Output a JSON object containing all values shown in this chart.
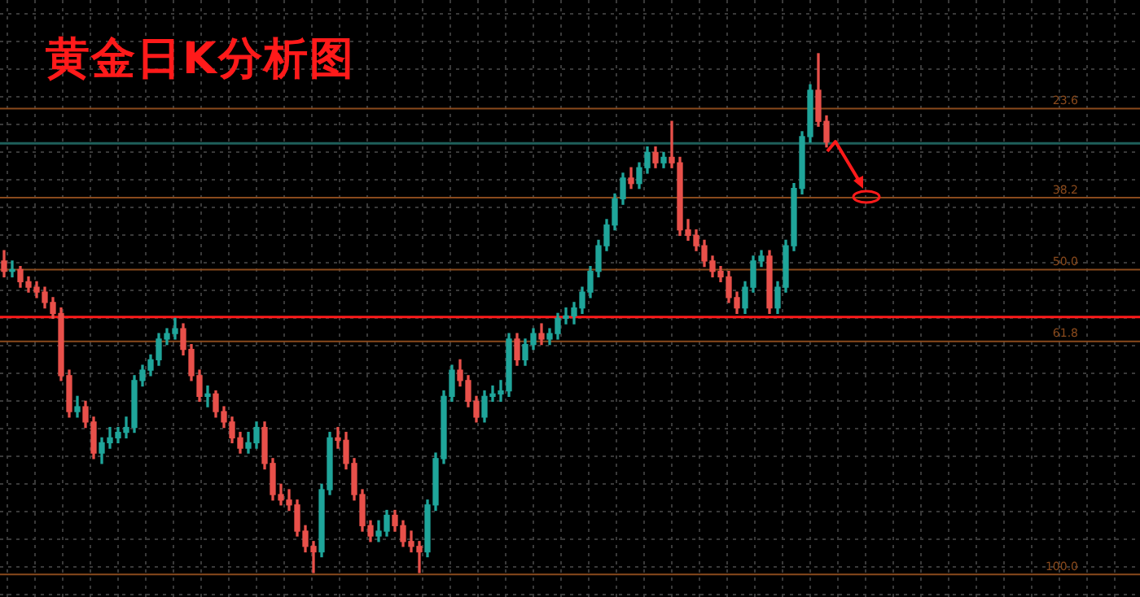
{
  "chart_data": {
    "type": "candlestick",
    "title": "黄金日K分析图",
    "grid": true,
    "tick_labels": false,
    "ylim": [
      103.7,
      5.8
    ],
    "categories": [
      null,
      null,
      null,
      null,
      null,
      null,
      null,
      null,
      null,
      null,
      null,
      null,
      null,
      null,
      null,
      null,
      null,
      null,
      null,
      null,
      null,
      null,
      null,
      null,
      null,
      null,
      null,
      null,
      null,
      null,
      null,
      null,
      null,
      null,
      null,
      null,
      null,
      null,
      null,
      null,
      null,
      null,
      null,
      null,
      null,
      null,
      null,
      null,
      null,
      null,
      null,
      null,
      null,
      null,
      null,
      null,
      null,
      null,
      null,
      null,
      null,
      null,
      null,
      null,
      null,
      null,
      null,
      null,
      null,
      null,
      null,
      null,
      null,
      null,
      null,
      null,
      null,
      null,
      null,
      null,
      null,
      null,
      null,
      null,
      null,
      null,
      null,
      null,
      null,
      null,
      null,
      null,
      null,
      null,
      null,
      null,
      null,
      null,
      null,
      null,
      null,
      null,
      null,
      null,
      null,
      null,
      null,
      null,
      null,
      null,
      null,
      null,
      null,
      null,
      null,
      null,
      null,
      null,
      null,
      null,
      null,
      null,
      null,
      null,
      null,
      null,
      null,
      null,
      null,
      null,
      null,
      null,
      null,
      null,
      null,
      null,
      null,
      null,
      null,
      null
    ],
    "ohlc": [
      [
        48.6,
        51.2,
        46.9,
        50.3
      ],
      [
        50.3,
        51.2,
        48.6,
        50.0
      ],
      [
        50.0,
        52.9,
        49.5,
        52.0
      ],
      [
        52.0,
        53.7,
        51.2,
        52.9
      ],
      [
        52.9,
        54.6,
        52.0,
        53.7
      ],
      [
        53.7,
        56.3,
        52.9,
        55.4
      ],
      [
        55.4,
        58.0,
        54.6,
        57.2
      ],
      [
        57.2,
        68.2,
        56.3,
        67.4
      ],
      [
        67.4,
        74.2,
        66.5,
        73.3
      ],
      [
        73.3,
        74.2,
        70.8,
        72.5
      ],
      [
        72.5,
        75.9,
        71.6,
        75.0
      ],
      [
        75.0,
        81.0,
        74.2,
        80.1
      ],
      [
        80.1,
        81.8,
        77.6,
        78.4
      ],
      [
        78.4,
        79.3,
        75.9,
        77.6
      ],
      [
        77.6,
        78.4,
        75.9,
        76.7
      ],
      [
        76.7,
        77.6,
        74.2,
        75.9
      ],
      [
        75.9,
        76.7,
        67.4,
        68.2
      ],
      [
        68.2,
        69.1,
        65.7,
        66.5
      ],
      [
        66.5,
        67.4,
        64.0,
        64.8
      ],
      [
        64.8,
        65.7,
        60.5,
        61.4
      ],
      [
        61.4,
        62.3,
        59.7,
        60.5
      ],
      [
        60.5,
        61.4,
        58.0,
        59.7
      ],
      [
        59.7,
        64.0,
        58.9,
        63.1
      ],
      [
        63.1,
        68.2,
        62.3,
        67.4
      ],
      [
        67.4,
        71.6,
        66.5,
        70.8
      ],
      [
        70.8,
        72.5,
        69.1,
        70.4
      ],
      [
        70.4,
        74.2,
        69.9,
        73.3
      ],
      [
        73.3,
        75.9,
        72.5,
        75.0
      ],
      [
        75.0,
        78.4,
        74.2,
        77.6
      ],
      [
        77.6,
        80.1,
        76.7,
        79.3
      ],
      [
        79.3,
        80.1,
        76.7,
        78.4
      ],
      [
        78.4,
        79.3,
        75.0,
        75.9
      ],
      [
        75.9,
        82.7,
        75.0,
        81.8
      ],
      [
        81.8,
        87.8,
        81.0,
        86.9
      ],
      [
        86.9,
        88.6,
        85.2,
        87.8
      ],
      [
        87.8,
        89.5,
        86.1,
        88.6
      ],
      [
        88.6,
        93.7,
        87.8,
        92.9
      ],
      [
        92.9,
        96.3,
        92.0,
        95.4
      ],
      [
        95.4,
        99.7,
        94.6,
        96.3
      ],
      [
        96.3,
        97.1,
        85.2,
        86.1
      ],
      [
        86.1,
        86.9,
        76.7,
        77.6
      ],
      [
        77.6,
        79.3,
        75.9,
        78.0
      ],
      [
        78.0,
        82.7,
        76.7,
        81.8
      ],
      [
        81.8,
        87.8,
        81.0,
        86.9
      ],
      [
        86.9,
        92.9,
        86.1,
        92.0
      ],
      [
        92.0,
        94.6,
        91.2,
        93.7
      ],
      [
        93.7,
        94.6,
        91.2,
        92.9
      ],
      [
        92.9,
        93.7,
        89.5,
        90.3
      ],
      [
        90.3,
        92.9,
        89.5,
        92.0
      ],
      [
        92.0,
        95.4,
        91.2,
        94.6
      ],
      [
        94.6,
        96.3,
        92.9,
        95.4
      ],
      [
        95.4,
        99.7,
        94.6,
        96.3
      ],
      [
        96.3,
        97.1,
        87.8,
        88.6
      ],
      [
        88.6,
        89.5,
        80.1,
        81.0
      ],
      [
        81.0,
        81.8,
        69.9,
        70.8
      ],
      [
        70.8,
        71.6,
        65.7,
        66.5
      ],
      [
        66.5,
        69.1,
        64.8,
        68.2
      ],
      [
        68.2,
        72.5,
        67.4,
        71.6
      ],
      [
        71.6,
        75.0,
        70.8,
        74.2
      ],
      [
        74.2,
        75.0,
        69.9,
        70.8
      ],
      [
        70.8,
        71.6,
        69.1,
        70.4
      ],
      [
        70.4,
        71.6,
        68.2,
        69.9
      ],
      [
        69.9,
        70.8,
        60.5,
        61.4
      ],
      [
        61.4,
        65.7,
        60.5,
        64.8
      ],
      [
        64.8,
        65.7,
        61.4,
        62.3
      ],
      [
        62.3,
        63.1,
        59.7,
        60.5
      ],
      [
        60.5,
        62.3,
        58.9,
        61.4
      ],
      [
        61.4,
        62.3,
        59.7,
        60.5
      ],
      [
        60.5,
        61.4,
        57.2,
        58.0
      ],
      [
        58.0,
        58.9,
        56.3,
        57.6
      ],
      [
        57.6,
        58.9,
        55.4,
        56.3
      ],
      [
        56.3,
        57.2,
        52.9,
        53.7
      ],
      [
        53.7,
        54.6,
        49.5,
        50.3
      ],
      [
        50.3,
        51.2,
        45.2,
        46.1
      ],
      [
        46.1,
        46.9,
        41.8,
        42.7
      ],
      [
        42.7,
        43.5,
        37.6,
        38.4
      ],
      [
        38.4,
        39.3,
        34.2,
        35.0
      ],
      [
        35.0,
        36.7,
        33.3,
        35.9
      ],
      [
        35.9,
        36.7,
        32.5,
        33.3
      ],
      [
        33.3,
        34.2,
        29.9,
        30.8
      ],
      [
        30.8,
        33.3,
        29.9,
        32.5
      ],
      [
        32.5,
        33.3,
        30.8,
        31.6
      ],
      [
        31.6,
        33.3,
        25.7,
        32.5
      ],
      [
        32.5,
        44.4,
        31.6,
        43.5
      ],
      [
        43.5,
        45.2,
        41.8,
        44.4
      ],
      [
        44.4,
        46.9,
        43.5,
        46.1
      ],
      [
        46.1,
        49.5,
        45.2,
        48.6
      ],
      [
        48.6,
        51.2,
        47.8,
        50.3
      ],
      [
        50.3,
        52.0,
        49.5,
        51.2
      ],
      [
        51.2,
        55.4,
        50.3,
        54.6
      ],
      [
        54.6,
        57.2,
        53.7,
        56.3
      ],
      [
        56.3,
        57.2,
        52.0,
        52.9
      ],
      [
        52.9,
        53.7,
        47.8,
        48.6
      ],
      [
        48.6,
        49.5,
        46.9,
        47.8
      ],
      [
        47.8,
        57.2,
        46.9,
        56.3
      ],
      [
        56.3,
        57.2,
        52.0,
        52.9
      ],
      [
        52.9,
        53.7,
        45.2,
        46.1
      ],
      [
        46.1,
        46.9,
        35.9,
        36.7
      ],
      [
        36.7,
        37.6,
        27.4,
        28.2
      ],
      [
        28.2,
        29.1,
        19.7,
        20.6
      ],
      [
        20.6,
        26.5,
        14.6,
        25.7
      ],
      [
        25.7,
        29.9,
        24.8,
        29.1
      ],
      null,
      null,
      null,
      null,
      null,
      null,
      null,
      null,
      null,
      null,
      null,
      null,
      null,
      null,
      null,
      null,
      null,
      null,
      null,
      null,
      null,
      null,
      null,
      null,
      null,
      null,
      null,
      null,
      null,
      null,
      null,
      null,
      null,
      null,
      null,
      null,
      null,
      null
    ],
    "colors": [
      "#e8504a",
      "#1fa59a",
      "#e8504a",
      "#e8504a",
      "#e8504a",
      "#e8504a",
      "#e8504a",
      "#e8504a",
      "#e8504a",
      "#1fa59a",
      "#e8504a",
      "#e8504a",
      "#1fa59a",
      "#1fa59a",
      "#1fa59a",
      "#1fa59a",
      "#1fa59a",
      "#1fa59a",
      "#1fa59a",
      "#1fa59a",
      "#1fa59a",
      "#1fa59a",
      "#e8504a",
      "#e8504a",
      "#e8504a",
      "#1fa59a",
      "#e8504a",
      "#e8504a",
      "#e8504a",
      "#e8504a",
      "#1fa59a",
      "#1fa59a",
      "#e8504a",
      "#e8504a",
      "#e8504a",
      "#e8504a",
      "#e8504a",
      "#e8504a",
      "#e8504a",
      "#1fa59a",
      "#1fa59a",
      "#e8504a",
      "#e8504a",
      "#e8504a",
      "#e8504a",
      "#e8504a",
      "#1fa59a",
      "#1fa59a",
      "#e8504a",
      "#e8504a",
      "#e8504a",
      "#e8504a",
      "#1fa59a",
      "#1fa59a",
      "#1fa59a",
      "#1fa59a",
      "#e8504a",
      "#e8504a",
      "#e8504a",
      "#1fa59a",
      "#1fa59a",
      "#1fa59a",
      "#1fa59a",
      "#e8504a",
      "#1fa59a",
      "#1fa59a",
      "#e8504a",
      "#1fa59a",
      "#1fa59a",
      "#1fa59a",
      "#1fa59a",
      "#1fa59a",
      "#1fa59a",
      "#1fa59a",
      "#1fa59a",
      "#1fa59a",
      "#1fa59a",
      "#e8504a",
      "#1fa59a",
      "#1fa59a",
      "#e8504a",
      "#1fa59a",
      "#e8504a",
      "#e8504a",
      "#e8504a",
      "#e8504a",
      "#e8504a",
      "#e8504a",
      "#e8504a",
      "#e8504a",
      "#e8504a",
      "#1fa59a",
      "#1fa59a",
      "#1fa59a",
      "#e8504a",
      "#1fa59a",
      "#1fa59a",
      "#1fa59a",
      "#1fa59a",
      "#1fa59a",
      "#e8504a",
      "#e8504a",
      null,
      null,
      null,
      null,
      null,
      null,
      null,
      null,
      null,
      null,
      null,
      null,
      null,
      null,
      null,
      null,
      null,
      null,
      null,
      null,
      null,
      null,
      null,
      null,
      null,
      null,
      null,
      null,
      null,
      null,
      null,
      null,
      null,
      null,
      null,
      null,
      null,
      null
    ],
    "ref_lines": [
      {
        "axis": "y",
        "value": 23.6,
        "label": "23.6",
        "color": "#8a4a1c"
      },
      {
        "axis": "y",
        "value": 38.2,
        "label": "38.2",
        "color": "#8a4a1c"
      },
      {
        "axis": "y",
        "value": 50.0,
        "label": "50.0",
        "color": "#8a4a1c"
      },
      {
        "axis": "y",
        "value": 61.8,
        "label": "61.8",
        "color": "#8a4a1c"
      },
      {
        "axis": "y",
        "value": 100.0,
        "label": "100.0",
        "color": "#8a4a1c"
      },
      {
        "axis": "y",
        "value": 29.3,
        "color": "#1e5f5a"
      },
      {
        "axis": "y",
        "value": 57.8,
        "color": "#ff1a1a"
      }
    ]
  }
}
